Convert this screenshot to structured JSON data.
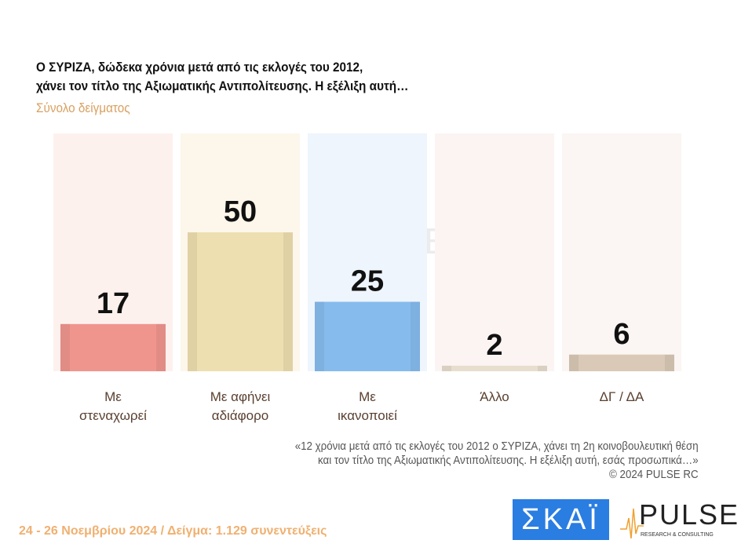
{
  "title_lines": [
    "Ο ΣΥΡΙΖΑ, δώδεκα χρόνια μετά από τις εκλογές του 2012,",
    "χάνει τον τίτλο της Αξιωματικής Αντιπολίτευσης. Η εξέλιξη αυτή…"
  ],
  "subtitle": "Σύνολο δείγματος",
  "chart_data": {
    "type": "bar",
    "title": "Ο ΣΥΡΙΖΑ, δώδεκα χρόνια μετά από τις εκλογές του 2012, χάνει τον τίτλο της Αξιωματικής Αντιπολίτευσης. Η εξέλιξη αυτή…",
    "categories": [
      [
        "Με",
        "στεναχωρεί"
      ],
      [
        "Με αφήνει",
        "αδιάφορο"
      ],
      [
        "Με",
        "ικανοποιεί"
      ],
      [
        "Άλλο"
      ],
      [
        "ΔΓ / ΔΑ"
      ]
    ],
    "values": [
      17,
      50,
      25,
      2,
      6
    ],
    "colors": [
      "#f0958e",
      "#eedfb0",
      "#86bbee",
      "#e8dece",
      "#d9c9b6"
    ],
    "bg_colors": [
      "#fdf1ee",
      "#fdf6ea",
      "#eef5fc",
      "#fbf4f3",
      "#fbf5f3"
    ],
    "ylim": [
      0,
      85
    ],
    "grid": false
  },
  "watermark": "PULSE",
  "note_lines": [
    "«12 χρόνια μετά από τις εκλογές του 2012 ο ΣΥΡΙΖΑ, χάνει τη 2η κοινοβουλευτική θέση",
    "και τον τίτλο της Αξιωματικής Αντιπολίτευσης. Η εξέλιξη αυτή, εσάς προσωπικά…»",
    "©  2024  PULSE RC"
  ],
  "footer": "24 - 26 Νοεμβρίου 2024  /  Δείγμα:  1.129 συνεντεύξεις",
  "logos": {
    "skai": "ΣΚΑΪ",
    "pulse": "PULSE",
    "pulse_sub": "RESEARCH & CONSULTING"
  }
}
